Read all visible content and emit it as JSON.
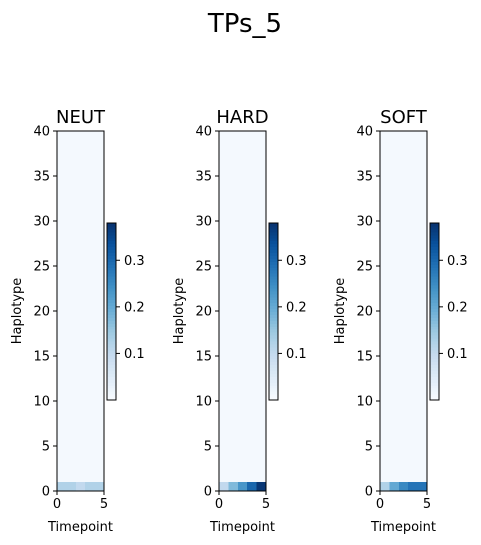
{
  "figure": {
    "title": "TPs_5"
  },
  "chart_data": [
    {
      "type": "heatmap",
      "title": "NEUT",
      "xlabel": "Timepoint",
      "ylabel": "Haplotype",
      "xlim": [
        0,
        5
      ],
      "ylim": [
        0,
        40
      ],
      "xticks": [
        "0",
        "5"
      ],
      "yticks": [
        "0",
        "5",
        "10",
        "15",
        "20",
        "25",
        "30",
        "35",
        "40"
      ],
      "colormap": "Blues",
      "vmin": 0.0,
      "vmax": 0.38,
      "colorbar_ticks": [
        "0.1",
        "0.2",
        "0.3"
      ],
      "row0_values": [
        0.12,
        0.12,
        0.1,
        0.12,
        0.12
      ],
      "other_rows_value": 0.005
    },
    {
      "type": "heatmap",
      "title": "HARD",
      "xlabel": "Timepoint",
      "ylabel": "Haplotype",
      "xlim": [
        0,
        5
      ],
      "ylim": [
        0,
        40
      ],
      "xticks": [
        "0",
        "5"
      ],
      "yticks": [
        "0",
        "5",
        "10",
        "15",
        "20",
        "25",
        "30",
        "35",
        "40"
      ],
      "colormap": "Blues",
      "vmin": 0.0,
      "vmax": 0.38,
      "colorbar_ticks": [
        "0.1",
        "0.2",
        "0.3"
      ],
      "row0_values": [
        0.1,
        0.17,
        0.23,
        0.3,
        0.37
      ],
      "other_rows_value": 0.005
    },
    {
      "type": "heatmap",
      "title": "SOFT",
      "xlabel": "Timepoint",
      "ylabel": "Haplotype",
      "xlim": [
        0,
        5
      ],
      "ylim": [
        0,
        40
      ],
      "xticks": [
        "0",
        "5"
      ],
      "yticks": [
        "0",
        "5",
        "10",
        "15",
        "20",
        "25",
        "30",
        "35",
        "40"
      ],
      "colormap": "Blues",
      "vmin": 0.0,
      "vmax": 0.38,
      "colorbar_ticks": [
        "0.1",
        "0.2",
        "0.3"
      ],
      "row0_values": [
        0.12,
        0.2,
        0.25,
        0.28,
        0.28
      ],
      "other_rows_value": 0.005
    }
  ]
}
